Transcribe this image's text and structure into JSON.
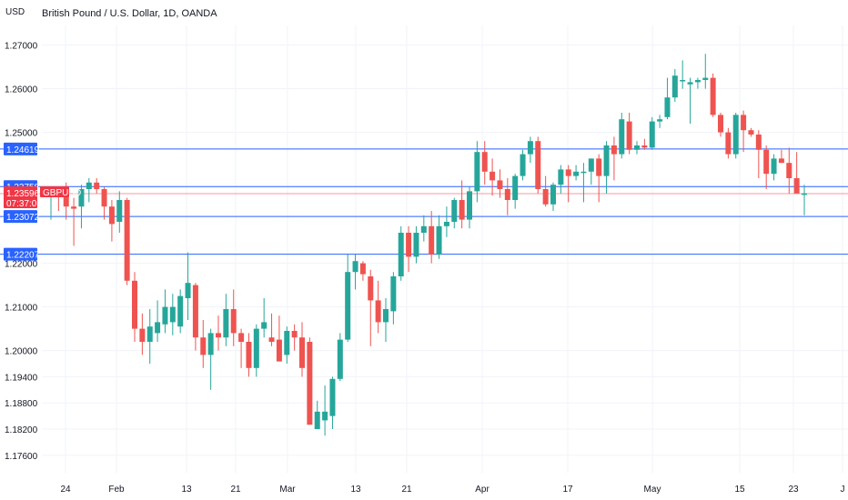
{
  "chart_data": {
    "type": "candlestick",
    "title": "British Pound / U.S. Dollar, 1D, OANDA",
    "yunit": "USD",
    "ylim": [
      1.172,
      1.2745
    ],
    "yticks": [
      "1.27000",
      "1.26000",
      "1.25000",
      "1.22000",
      "1.21000",
      "1.20000",
      "1.19400",
      "1.18800",
      "1.18200",
      "1.17600"
    ],
    "xticks": [
      "24",
      "Feb",
      "13",
      "21",
      "Mar",
      "13",
      "21",
      "Apr",
      "17",
      "May",
      "15",
      "23",
      "J"
    ],
    "grid": true,
    "colors": {
      "up": "#26a69a",
      "down": "#ef5350",
      "hline": "#2962ff",
      "price": "#f23645",
      "grid": "#f0f3fa"
    },
    "horizontal_lines": [
      {
        "label": "1.24619",
        "value": 1.24619
      },
      {
        "label": "1.23758",
        "value": 1.23758
      },
      {
        "label": "1.23072",
        "value": 1.23072
      },
      {
        "label": "1.22207",
        "value": 1.22207
      }
    ],
    "last_price": {
      "symbol": "GBPUSD",
      "value": "1.23596",
      "countdown": "07:37:01",
      "level": 1.23596
    },
    "candles": [
      [
        1.2355,
        1.2375,
        1.23,
        1.2368
      ],
      [
        1.2368,
        1.2375,
        1.232,
        1.2365
      ],
      [
        1.2365,
        1.2385,
        1.23,
        1.233
      ],
      [
        1.233,
        1.235,
        1.224,
        1.2325
      ],
      [
        1.233,
        1.238,
        1.228,
        1.237
      ],
      [
        1.237,
        1.2395,
        1.234,
        1.2385
      ],
      [
        1.2385,
        1.2395,
        1.236,
        1.237
      ],
      [
        1.237,
        1.2375,
        1.23,
        1.233
      ],
      [
        1.233,
        1.2345,
        1.225,
        1.229
      ],
      [
        1.2295,
        1.2365,
        1.227,
        1.2345
      ],
      [
        1.2345,
        1.235,
        1.215,
        1.216
      ],
      [
        1.216,
        1.218,
        1.202,
        1.205
      ],
      [
        1.205,
        1.2085,
        1.199,
        1.202
      ],
      [
        1.202,
        1.2095,
        1.197,
        1.2055
      ],
      [
        1.204,
        1.2115,
        1.202,
        1.2065
      ],
      [
        1.206,
        1.214,
        1.204,
        1.21
      ],
      [
        1.2065,
        1.213,
        1.2035,
        1.21
      ],
      [
        1.2055,
        1.214,
        1.204,
        1.2125
      ],
      [
        1.212,
        1.2225,
        1.207,
        1.2155
      ],
      [
        1.215,
        1.2155,
        1.2,
        1.203
      ],
      [
        1.203,
        1.207,
        1.196,
        1.199
      ],
      [
        1.199,
        1.205,
        1.191,
        1.204
      ],
      [
        1.204,
        1.208,
        1.2,
        1.203
      ],
      [
        1.203,
        1.213,
        1.201,
        1.2095
      ],
      [
        1.2095,
        1.214,
        1.201,
        1.204
      ],
      [
        1.204,
        1.205,
        1.196,
        1.202
      ],
      [
        1.202,
        1.204,
        1.194,
        1.196
      ],
      [
        1.196,
        1.206,
        1.194,
        1.205
      ],
      [
        1.205,
        1.212,
        1.203,
        1.2065
      ],
      [
        1.203,
        1.2085,
        1.201,
        1.202
      ],
      [
        1.2025,
        1.208,
        1.198,
        1.1975
      ],
      [
        1.199,
        1.2055,
        1.197,
        1.2045
      ],
      [
        1.2045,
        1.206,
        1.2,
        1.203
      ],
      [
        1.203,
        1.2065,
        1.194,
        1.196
      ],
      [
        1.202,
        1.203,
        1.183,
        1.183
      ],
      [
        1.182,
        1.1885,
        1.182,
        1.186
      ],
      [
        1.184,
        1.192,
        1.1805,
        1.186
      ],
      [
        1.185,
        1.194,
        1.182,
        1.1935
      ],
      [
        1.1935,
        1.204,
        1.193,
        1.2025
      ],
      [
        1.2025,
        1.222,
        1.202,
        1.218
      ],
      [
        1.218,
        1.222,
        1.214,
        1.2205
      ],
      [
        1.22,
        1.2205,
        1.216,
        1.2175
      ],
      [
        1.217,
        1.2185,
        1.201,
        1.2115
      ],
      [
        1.2115,
        1.216,
        1.204,
        1.2065
      ],
      [
        1.2065,
        1.212,
        1.202,
        1.2095
      ],
      [
        1.209,
        1.218,
        1.206,
        1.217
      ],
      [
        1.217,
        1.2285,
        1.216,
        1.227
      ],
      [
        1.227,
        1.2285,
        1.218,
        1.2215
      ],
      [
        1.2215,
        1.2285,
        1.22,
        1.227
      ],
      [
        1.227,
        1.231,
        1.225,
        1.2285
      ],
      [
        1.2285,
        1.232,
        1.22,
        1.222
      ],
      [
        1.222,
        1.231,
        1.221,
        1.2285
      ],
      [
        1.2285,
        1.233,
        1.226,
        1.2295
      ],
      [
        1.2295,
        1.235,
        1.228,
        1.2345
      ],
      [
        1.2345,
        1.239,
        1.228,
        1.23
      ],
      [
        1.23,
        1.2375,
        1.228,
        1.2365
      ],
      [
        1.2365,
        1.248,
        1.234,
        1.2455
      ],
      [
        1.2455,
        1.248,
        1.238,
        1.241
      ],
      [
        1.241,
        1.244,
        1.2355,
        1.239
      ],
      [
        1.239,
        1.2415,
        1.235,
        1.237
      ],
      [
        1.237,
        1.2395,
        1.231,
        1.2345
      ],
      [
        1.2345,
        1.2405,
        1.2325,
        1.24
      ],
      [
        1.24,
        1.246,
        1.239,
        1.245
      ],
      [
        1.245,
        1.249,
        1.243,
        1.248
      ],
      [
        1.248,
        1.249,
        1.236,
        1.237
      ],
      [
        1.237,
        1.24,
        1.233,
        1.2335
      ],
      [
        1.2335,
        1.2385,
        1.232,
        1.238
      ],
      [
        1.238,
        1.2425,
        1.236,
        1.2415
      ],
      [
        1.2415,
        1.2425,
        1.234,
        1.24
      ],
      [
        1.24,
        1.2425,
        1.239,
        1.241
      ],
      [
        1.241,
        1.243,
        1.234,
        1.241
      ],
      [
        1.241,
        1.244,
        1.238,
        1.244
      ],
      [
        1.244,
        1.245,
        1.234,
        1.24
      ],
      [
        1.24,
        1.248,
        1.236,
        1.247
      ],
      [
        1.247,
        1.249,
        1.239,
        1.245
      ],
      [
        1.245,
        1.2545,
        1.244,
        1.253
      ],
      [
        1.2525,
        1.2545,
        1.245,
        1.246
      ],
      [
        1.246,
        1.248,
        1.245,
        1.247
      ],
      [
        1.247,
        1.2485,
        1.246,
        1.2465
      ],
      [
        1.2465,
        1.2535,
        1.246,
        1.2525
      ],
      [
        1.2525,
        1.254,
        1.251,
        1.253
      ],
      [
        1.2535,
        1.2625,
        1.253,
        1.258
      ],
      [
        1.258,
        1.2645,
        1.257,
        1.263
      ],
      [
        1.262,
        1.2665,
        1.26,
        1.262
      ],
      [
        1.261,
        1.2625,
        1.252,
        1.2615
      ],
      [
        1.2615,
        1.2625,
        1.26,
        1.262
      ],
      [
        1.262,
        1.268,
        1.26,
        1.2625
      ],
      [
        1.2625,
        1.2635,
        1.2535,
        1.254
      ],
      [
        1.254,
        1.2545,
        1.249,
        1.25
      ],
      [
        1.25,
        1.251,
        1.244,
        1.245
      ],
      [
        1.245,
        1.2545,
        1.244,
        1.254
      ],
      [
        1.254,
        1.255,
        1.2455,
        1.2505
      ],
      [
        1.2505,
        1.251,
        1.249,
        1.2495
      ],
      [
        1.2495,
        1.2505,
        1.2395,
        1.246
      ],
      [
        1.246,
        1.247,
        1.237,
        1.2405
      ],
      [
        1.2405,
        1.245,
        1.239,
        1.244
      ],
      [
        1.244,
        1.246,
        1.243,
        1.243
      ],
      [
        1.243,
        1.2465,
        1.236,
        1.2395
      ],
      [
        1.2395,
        1.2455,
        1.237,
        1.236
      ],
      [
        1.236,
        1.238,
        1.231,
        1.236
      ]
    ]
  }
}
